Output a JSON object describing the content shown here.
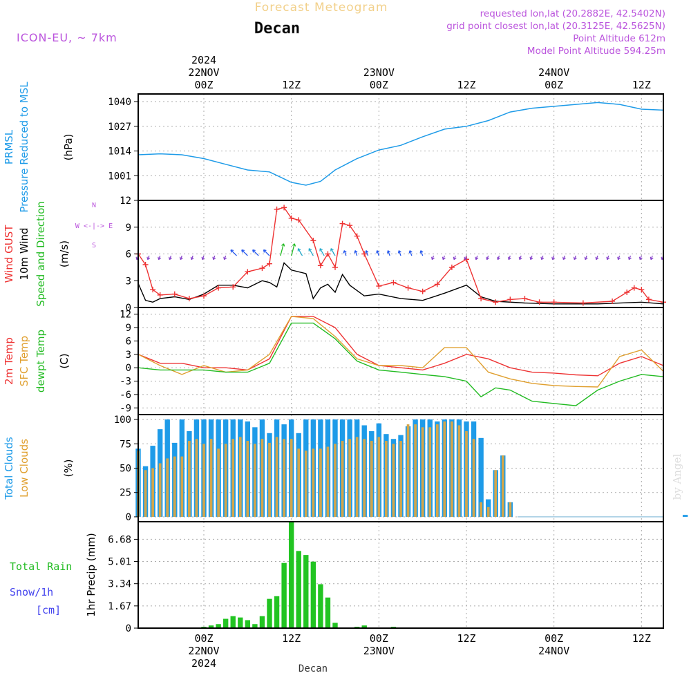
{
  "header": {
    "title": "Forecast Meteogram",
    "location": "Decan",
    "model": "ICON-EU, ~ 7km",
    "requested": "requested lon,lat (20.2882E, 42.5402N)",
    "gridpoint": "grid point closest lon,lat (20.3125E, 42.5625N)",
    "point_altitude": "Point Altitude 612m",
    "model_altitude": "Model Point Altitude 594.25m",
    "watermark": "by Angel",
    "bottom_label": "Decan"
  },
  "time_axis": {
    "start": "2024-11-21T15:00Z",
    "end": "2024-11-24T15:00Z",
    "ticks": [
      {
        "time": "2024-11-22T00:00Z",
        "lines": [
          "2024",
          "22NOV",
          "00Z"
        ]
      },
      {
        "time": "2024-11-22T12:00Z",
        "lines": [
          "12Z"
        ]
      },
      {
        "time": "2024-11-23T00:00Z",
        "lines": [
          "23NOV",
          "00Z"
        ]
      },
      {
        "time": "2024-11-23T12:00Z",
        "lines": [
          "12Z"
        ]
      },
      {
        "time": "2024-11-24T00:00Z",
        "lines": [
          "24NOV",
          "00Z"
        ]
      },
      {
        "time": "2024-11-24T12:00Z",
        "lines": [
          "12Z"
        ]
      }
    ],
    "bottom_ticks": [
      {
        "time": "2024-11-22T00:00Z",
        "lines": [
          "00Z",
          "22NOV",
          "2024"
        ]
      },
      {
        "time": "2024-11-22T12:00Z",
        "lines": [
          "12Z"
        ]
      },
      {
        "time": "2024-11-23T00:00Z",
        "lines": [
          "00Z",
          "23NOV"
        ]
      },
      {
        "time": "2024-11-23T12:00Z",
        "lines": [
          "12Z"
        ]
      },
      {
        "time": "2024-11-24T00:00Z",
        "lines": [
          "00Z",
          "24NOV"
        ]
      },
      {
        "time": "2024-11-24T12:00Z",
        "lines": [
          "12Z"
        ]
      }
    ]
  },
  "panels": [
    {
      "id": "pressure",
      "labels": [
        {
          "text": "PRMSL",
          "color": "#1e9be8"
        },
        {
          "text": "Pressure Reduced to MSL",
          "color": "#1e9be8"
        },
        {
          "text": "(hPa)",
          "color": "#000000"
        }
      ]
    },
    {
      "id": "wind",
      "labels": [
        {
          "text": "Wind GUST",
          "color": "#ee3333"
        },
        {
          "text": "10m Wind",
          "color": "#000000"
        },
        {
          "text": "Speed and Direction",
          "color": "#22bb22"
        },
        {
          "text": "(m/s)",
          "color": "#000000"
        }
      ],
      "compass": [
        "N",
        "W <-|-> E",
        "S"
      ]
    },
    {
      "id": "temp",
      "labels": [
        {
          "text": "2m Temp",
          "color": "#ee3333"
        },
        {
          "text": "SFC Temp",
          "color": "#e0a030"
        },
        {
          "text": "dewpt Temp",
          "color": "#22bb22"
        },
        {
          "text": "(C)",
          "color": "#000000"
        }
      ]
    },
    {
      "id": "clouds",
      "labels": [
        {
          "text": "Total Clouds",
          "color": "#1e9be8"
        },
        {
          "text": "Low Clouds",
          "color": "#e0a030"
        },
        {
          "text": "(%)",
          "color": "#000000"
        }
      ]
    },
    {
      "id": "precip",
      "labels_h": [
        {
          "text": "Total  Rain",
          "color": "#22bb22"
        },
        {
          "text": "Snow/1h",
          "color": "#4444ee"
        },
        {
          "text": "[cm]",
          "color": "#4444ee"
        }
      ],
      "ylabel": "1hr Precip (mm)"
    }
  ],
  "chart_data": [
    {
      "type": "line",
      "title": "PRMSL Pressure Reduced to MSL",
      "ylabel": "(hPa)",
      "ylim": [
        988,
        1044
      ],
      "yticks": [
        1001,
        1014,
        1027,
        1040
      ],
      "grid": true,
      "color": "#1e9be8",
      "x": [
        "2024-11-21T15:00Z",
        "2024-11-21T18:00Z",
        "2024-11-21T21:00Z",
        "2024-11-22T00:00Z",
        "2024-11-22T03:00Z",
        "2024-11-22T06:00Z",
        "2024-11-22T09:00Z",
        "2024-11-22T12:00Z",
        "2024-11-22T14:00Z",
        "2024-11-22T16:00Z",
        "2024-11-22T18:00Z",
        "2024-11-22T21:00Z",
        "2024-11-23T00:00Z",
        "2024-11-23T03:00Z",
        "2024-11-23T06:00Z",
        "2024-11-23T09:00Z",
        "2024-11-23T12:00Z",
        "2024-11-23T15:00Z",
        "2024-11-23T18:00Z",
        "2024-11-23T21:00Z",
        "2024-11-24T00:00Z",
        "2024-11-24T03:00Z",
        "2024-11-24T06:00Z",
        "2024-11-24T09:00Z",
        "2024-11-24T12:00Z",
        "2024-11-24T15:00Z"
      ],
      "values": [
        1012,
        1012.5,
        1012,
        1010,
        1007,
        1004,
        1003,
        997.5,
        996,
        998,
        1004,
        1010,
        1014.5,
        1017,
        1021.5,
        1025.5,
        1027,
        1030,
        1034.5,
        1036.5,
        1037.5,
        1038.5,
        1039.5,
        1038.5,
        1036,
        1035.5
      ]
    },
    {
      "type": "line",
      "title": "Wind GUST / 10m Wind Speed and Direction",
      "ylabel": "(m/s)",
      "ylim": [
        0,
        12
      ],
      "yticks": [
        0,
        3,
        6,
        9,
        12
      ],
      "grid": true,
      "series": [
        {
          "name": "Wind GUST",
          "color": "#ee3333",
          "marker": "+",
          "x": [
            "2024-11-21T15:00Z",
            "2024-11-21T16:00Z",
            "2024-11-21T17:00Z",
            "2024-11-21T18:00Z",
            "2024-11-21T20:00Z",
            "2024-11-21T22:00Z",
            "2024-11-22T00:00Z",
            "2024-11-22T02:00Z",
            "2024-11-22T04:00Z",
            "2024-11-22T06:00Z",
            "2024-11-22T08:00Z",
            "2024-11-22T09:00Z",
            "2024-11-22T10:00Z",
            "2024-11-22T11:00Z",
            "2024-11-22T12:00Z",
            "2024-11-22T13:00Z",
            "2024-11-22T15:00Z",
            "2024-11-22T16:00Z",
            "2024-11-22T17:00Z",
            "2024-11-22T18:00Z",
            "2024-11-22T19:00Z",
            "2024-11-22T20:00Z",
            "2024-11-22T21:00Z",
            "2024-11-22T22:00Z",
            "2024-11-23T00:00Z",
            "2024-11-23T02:00Z",
            "2024-11-23T04:00Z",
            "2024-11-23T06:00Z",
            "2024-11-23T08:00Z",
            "2024-11-23T10:00Z",
            "2024-11-23T12:00Z",
            "2024-11-23T14:00Z",
            "2024-11-23T16:00Z",
            "2024-11-23T18:00Z",
            "2024-11-23T20:00Z",
            "2024-11-23T22:00Z",
            "2024-11-24T00:00Z",
            "2024-11-24T04:00Z",
            "2024-11-24T08:00Z",
            "2024-11-24T10:00Z",
            "2024-11-24T11:00Z",
            "2024-11-24T12:00Z",
            "2024-11-24T13:00Z",
            "2024-11-24T15:00Z"
          ],
          "values": [
            6,
            4.8,
            2,
            1.4,
            1.5,
            1,
            1.3,
            2.2,
            2.3,
            4,
            4.4,
            4.9,
            11,
            11.2,
            10,
            9.8,
            7.5,
            4.7,
            6,
            4.5,
            9.4,
            9.2,
            8,
            6,
            2.4,
            2.8,
            2.2,
            1.8,
            2.6,
            4.5,
            5.4,
            1,
            0.6,
            0.9,
            1,
            0.6,
            0.6,
            0.5,
            0.7,
            1.7,
            2.2,
            2,
            0.9,
            0.6
          ]
        },
        {
          "name": "10m Wind",
          "color": "#000000",
          "x": [
            "2024-11-21T15:00Z",
            "2024-11-21T16:00Z",
            "2024-11-21T17:00Z",
            "2024-11-21T18:00Z",
            "2024-11-21T20:00Z",
            "2024-11-21T22:00Z",
            "2024-11-22T00:00Z",
            "2024-11-22T02:00Z",
            "2024-11-22T04:00Z",
            "2024-11-22T06:00Z",
            "2024-11-22T08:00Z",
            "2024-11-22T09:00Z",
            "2024-11-22T10:00Z",
            "2024-11-22T11:00Z",
            "2024-11-22T12:00Z",
            "2024-11-22T14:00Z",
            "2024-11-22T15:00Z",
            "2024-11-22T16:00Z",
            "2024-11-22T17:00Z",
            "2024-11-22T18:00Z",
            "2024-11-22T19:00Z",
            "2024-11-22T20:00Z",
            "2024-11-22T22:00Z",
            "2024-11-23T00:00Z",
            "2024-11-23T03:00Z",
            "2024-11-23T06:00Z",
            "2024-11-23T09:00Z",
            "2024-11-23T12:00Z",
            "2024-11-23T14:00Z",
            "2024-11-23T16:00Z",
            "2024-11-23T20:00Z",
            "2024-11-24T00:00Z",
            "2024-11-24T06:00Z",
            "2024-11-24T12:00Z",
            "2024-11-24T15:00Z"
          ],
          "values": [
            2.7,
            0.8,
            0.6,
            1,
            1.2,
            0.9,
            1.5,
            2.5,
            2.5,
            2.2,
            3,
            2.8,
            2.3,
            5,
            4.2,
            3.8,
            1,
            2.2,
            2.6,
            1.7,
            3.7,
            2.5,
            1.3,
            1.5,
            1,
            0.8,
            1.6,
            2.5,
            1.2,
            0.7,
            0.5,
            0.4,
            0.4,
            0.6,
            0.4
          ]
        }
      ],
      "wind_direction": {
        "color_scale": [
          "#8844cc",
          "#2255ee",
          "#22aacc",
          "#22bb22"
        ],
        "level": 5.8
      }
    },
    {
      "type": "line",
      "title": "2m Temp / SFC Temp / dewpt Temp",
      "ylabel": "(C)",
      "ylim": [
        -10.5,
        13.5
      ],
      "yticks": [
        -9,
        -6,
        -3,
        0,
        3,
        6,
        9,
        12
      ],
      "grid": true,
      "series": [
        {
          "name": "2m Temp",
          "color": "#ee3333",
          "x": [
            "2024-11-21T15:00Z",
            "2024-11-21T18:00Z",
            "2024-11-21T21:00Z",
            "2024-11-22T00:00Z",
            "2024-11-22T03:00Z",
            "2024-11-22T06:00Z",
            "2024-11-22T09:00Z",
            "2024-11-22T12:00Z",
            "2024-11-22T15:00Z",
            "2024-11-22T18:00Z",
            "2024-11-22T21:00Z",
            "2024-11-23T00:00Z",
            "2024-11-23T03:00Z",
            "2024-11-23T06:00Z",
            "2024-11-23T09:00Z",
            "2024-11-23T12:00Z",
            "2024-11-23T15:00Z",
            "2024-11-23T18:00Z",
            "2024-11-23T21:00Z",
            "2024-11-24T00:00Z",
            "2024-11-24T03:00Z",
            "2024-11-24T06:00Z",
            "2024-11-24T09:00Z",
            "2024-11-24T12:00Z",
            "2024-11-24T15:00Z"
          ],
          "values": [
            3,
            1,
            1,
            0,
            0,
            -0.5,
            2,
            11.5,
            11.5,
            9,
            3,
            0.5,
            0,
            -0.5,
            1,
            3,
            2,
            0,
            -1,
            -1.2,
            -1.6,
            -1.8,
            1,
            2.5,
            0.5
          ]
        },
        {
          "name": "SFC Temp",
          "color": "#e0a030",
          "x": [
            "2024-11-21T15:00Z",
            "2024-11-21T18:00Z",
            "2024-11-21T21:00Z",
            "2024-11-22T00:00Z",
            "2024-11-22T03:00Z",
            "2024-11-22T06:00Z",
            "2024-11-22T09:00Z",
            "2024-11-22T12:00Z",
            "2024-11-22T15:00Z",
            "2024-11-22T18:00Z",
            "2024-11-22T21:00Z",
            "2024-11-23T00:00Z",
            "2024-11-23T03:00Z",
            "2024-11-23T06:00Z",
            "2024-11-23T09:00Z",
            "2024-11-23T12:00Z",
            "2024-11-23T15:00Z",
            "2024-11-23T18:00Z",
            "2024-11-23T21:00Z",
            "2024-11-24T00:00Z",
            "2024-11-24T03:00Z",
            "2024-11-24T06:00Z",
            "2024-11-24T09:00Z",
            "2024-11-24T12:00Z",
            "2024-11-24T15:00Z"
          ],
          "values": [
            3,
            0.5,
            -1.5,
            0.5,
            -1,
            -0.5,
            3,
            11.5,
            11,
            7,
            2,
            0.5,
            0.5,
            0,
            4.5,
            4.5,
            -1,
            -2.5,
            -3.5,
            -4,
            -4.2,
            -4.3,
            2.5,
            4,
            -0.8
          ]
        },
        {
          "name": "dewpt Temp",
          "color": "#22bb22",
          "x": [
            "2024-11-21T15:00Z",
            "2024-11-21T18:00Z",
            "2024-11-21T21:00Z",
            "2024-11-22T00:00Z",
            "2024-11-22T03:00Z",
            "2024-11-22T06:00Z",
            "2024-11-22T09:00Z",
            "2024-11-22T12:00Z",
            "2024-11-22T15:00Z",
            "2024-11-22T18:00Z",
            "2024-11-22T21:00Z",
            "2024-11-23T00:00Z",
            "2024-11-23T03:00Z",
            "2024-11-23T06:00Z",
            "2024-11-23T09:00Z",
            "2024-11-23T12:00Z",
            "2024-11-23T14:00Z",
            "2024-11-23T16:00Z",
            "2024-11-23T18:00Z",
            "2024-11-23T21:00Z",
            "2024-11-24T00:00Z",
            "2024-11-24T03:00Z",
            "2024-11-24T06:00Z",
            "2024-11-24T09:00Z",
            "2024-11-24T12:00Z",
            "2024-11-24T15:00Z"
          ],
          "values": [
            0,
            -0.5,
            -0.5,
            -0.5,
            -1,
            -1,
            1,
            10,
            10,
            6.5,
            1.5,
            -0.5,
            -1,
            -1.5,
            -2,
            -3,
            -6.5,
            -4.5,
            -5,
            -7.5,
            -8,
            -8.5,
            -5,
            -3,
            -1.5,
            -2
          ]
        }
      ]
    },
    {
      "type": "bar",
      "title": "Total Clouds / Low Clouds",
      "ylabel": "(%)",
      "ylim": [
        -5,
        105
      ],
      "yticks": [
        0,
        25,
        50,
        75,
        100
      ],
      "grid": true,
      "x_start": "2024-11-21T15:00Z",
      "step_hours": 1,
      "series": [
        {
          "name": "Total Clouds",
          "color": "#1e9be8",
          "values": [
            70,
            52,
            73,
            90,
            100,
            76,
            100,
            88,
            100,
            100,
            100,
            100,
            100,
            100,
            100,
            98,
            92,
            100,
            86,
            100,
            95,
            100,
            86,
            100,
            100,
            100,
            100,
            100,
            100,
            100,
            100,
            94,
            88,
            96,
            85,
            80,
            84,
            93,
            100,
            100,
            100,
            98,
            100,
            100,
            100,
            98,
            98,
            81,
            18,
            48,
            63,
            15,
            0,
            0,
            0,
            0,
            0,
            0,
            0,
            0,
            0,
            0,
            0,
            0,
            0,
            0,
            0,
            0,
            0,
            0,
            0,
            0,
            0,
            0,
            0,
            2,
            0,
            0,
            0,
            0,
            0,
            0,
            0,
            0,
            0,
            0,
            0,
            0,
            0,
            0,
            0
          ]
        },
        {
          "name": "Low Clouds",
          "color": "#d4a64a",
          "values": [
            68,
            48,
            50,
            55,
            60,
            62,
            62,
            78,
            80,
            75,
            80,
            70,
            75,
            80,
            82,
            78,
            75,
            80,
            76,
            82,
            80,
            80,
            70,
            68,
            70,
            70,
            72,
            75,
            78,
            80,
            82,
            80,
            78,
            82,
            78,
            75,
            78,
            95,
            95,
            92,
            92,
            95,
            98,
            98,
            94,
            88,
            80,
            15,
            10,
            48,
            63,
            15,
            0,
            0,
            0,
            0,
            0,
            0,
            0,
            0,
            0,
            0,
            0,
            0,
            0,
            0,
            0,
            0,
            0,
            0,
            0,
            0,
            0,
            0,
            0,
            0,
            0,
            0,
            0,
            0,
            0,
            0,
            0,
            0,
            0,
            0,
            0,
            0,
            0,
            0,
            0
          ]
        }
      ]
    },
    {
      "type": "bar",
      "title": "1hr Precip",
      "ylabel": "1hr Precip (mm)",
      "ylim": [
        0,
        8
      ],
      "yticks": [
        0,
        1.67,
        3.34,
        5.01,
        6.68
      ],
      "grid": true,
      "x_start": "2024-11-21T15:00Z",
      "step_hours": 1,
      "series": [
        {
          "name": "Total Rain",
          "color": "#22c422",
          "values": [
            0,
            0,
            0,
            0,
            0,
            0,
            0,
            0,
            0,
            0.1,
            0.2,
            0.3,
            0.7,
            0.9,
            0.8,
            0.6,
            0.3,
            0.9,
            2.2,
            2.4,
            4.9,
            8.0,
            5.8,
            5.5,
            5,
            3.3,
            2.3,
            0.4,
            0,
            0,
            0.1,
            0.2,
            0,
            0,
            0,
            0.1,
            0,
            0,
            0,
            0,
            0,
            0,
            0,
            0,
            0,
            0,
            0,
            0,
            0,
            0,
            0,
            0,
            0,
            0,
            0,
            0,
            0,
            0,
            0,
            0,
            0,
            0,
            0,
            0,
            0,
            0,
            0,
            0,
            0,
            0,
            0,
            0,
            0,
            0,
            0,
            0,
            0,
            0,
            0,
            0,
            0,
            0,
            0,
            0,
            0,
            0,
            0,
            0,
            0,
            0,
            0
          ]
        }
      ]
    }
  ]
}
